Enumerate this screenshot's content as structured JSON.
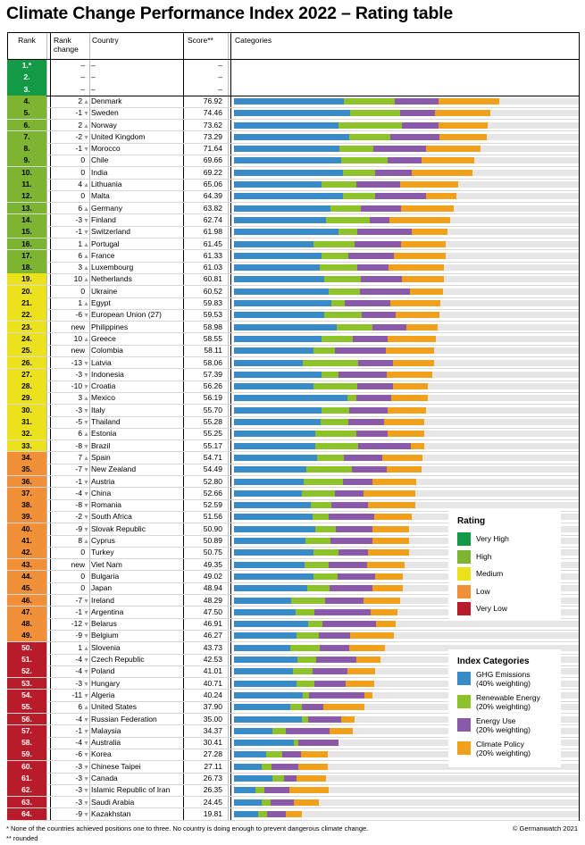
{
  "title": "Climate Change Performance Index 2022 – Rating table",
  "headers": {
    "rank": "Rank",
    "rank_change": "Rank change",
    "country": "Country",
    "score": "Score**",
    "categories": "Categories"
  },
  "colors": {
    "very_high": "#129a47",
    "high": "#7db431",
    "medium": "#ebe21d",
    "low": "#f0913a",
    "very_low": "#b81b29",
    "ghg": "#3a8ac8",
    "renewable": "#8dc22a",
    "energy": "#8a5aa8",
    "policy": "#f1a01c",
    "track": "#e6e6e6"
  },
  "legend_rating": {
    "title": "Rating",
    "items": [
      {
        "label": "Very High",
        "color": "#129a47"
      },
      {
        "label": "High",
        "color": "#7db431"
      },
      {
        "label": "Medium",
        "color": "#ebe21d"
      },
      {
        "label": "Low",
        "color": "#f0913a"
      },
      {
        "label": "Very Low",
        "color": "#b81b29"
      }
    ]
  },
  "legend_index": {
    "title": "Index Categories",
    "items": [
      {
        "label": "GHG Emissions",
        "sub": "(40% weighting)",
        "color": "#3a8ac8"
      },
      {
        "label": "Renewable Energy",
        "sub": "(20% weighting)",
        "color": "#8dc22a"
      },
      {
        "label": "Energy Use",
        "sub": "(20% weighting)",
        "color": "#8a5aa8"
      },
      {
        "label": "Climate Policy",
        "sub": "(20% weighting)",
        "color": "#f1a01c"
      }
    ]
  },
  "footer": {
    "note1": "* None of the countries achieved positions one to three. No country is doing enough to prevent dangerous climate change.",
    "note2": "** rounded",
    "credit": "© Germanwatch 2021"
  },
  "chart_data": {
    "type": "table",
    "category_scale_max": 100,
    "columns": [
      "rank",
      "rank_change",
      "country",
      "score",
      "ghg",
      "renewable",
      "energy",
      "policy",
      "rating"
    ],
    "rows": [
      {
        "rank": "1.*",
        "change": "–",
        "dir": "",
        "country": "–",
        "score": "–",
        "seg": null,
        "rating": "very_high"
      },
      {
        "rank": "2.",
        "change": "–",
        "dir": "",
        "country": "–",
        "score": "–",
        "seg": null,
        "rating": "very_high"
      },
      {
        "rank": "3.",
        "change": "–",
        "dir": "",
        "country": "–",
        "score": "–",
        "seg": null,
        "rating": "very_high"
      },
      {
        "rank": "4.",
        "change": "2",
        "dir": "up",
        "country": "Denmark",
        "score": "76.92",
        "seg": [
          31.9,
          14.7,
          12.6,
          17.7
        ],
        "rating": "high"
      },
      {
        "rank": "5.",
        "change": "-1",
        "dir": "down",
        "country": "Sweden",
        "score": "74.46",
        "seg": [
          33.6,
          14.5,
          10.3,
          15.9
        ],
        "rating": "high"
      },
      {
        "rank": "6.",
        "change": "2",
        "dir": "up",
        "country": "Norway",
        "score": "73.62",
        "seg": [
          30.2,
          18.4,
          10.6,
          14.4
        ],
        "rating": "high"
      },
      {
        "rank": "7.",
        "change": "-2",
        "dir": "down",
        "country": "United Kingdom",
        "score": "73.29",
        "seg": [
          33.4,
          11.9,
          14.4,
          13.6
        ],
        "rating": "high"
      },
      {
        "rank": "8.",
        "change": "-1",
        "dir": "down",
        "country": "Morocco",
        "score": "71.64",
        "seg": [
          30.6,
          9.8,
          15.3,
          15.9
        ],
        "rating": "high"
      },
      {
        "rank": "9.",
        "change": "0",
        "dir": "",
        "country": "Chile",
        "score": "69.66",
        "seg": [
          31.2,
          13.3,
          9.8,
          15.3
        ],
        "rating": "high"
      },
      {
        "rank": "10.",
        "change": "0",
        "dir": "",
        "country": "India",
        "score": "69.22",
        "seg": [
          31.5,
          9.5,
          10.6,
          17.6
        ],
        "rating": "high"
      },
      {
        "rank": "11.",
        "change": "4",
        "dir": "up",
        "country": "Lithuania",
        "score": "65.06",
        "seg": [
          25.4,
          10.0,
          12.7,
          16.9
        ],
        "rating": "high"
      },
      {
        "rank": "12.",
        "change": "0",
        "dir": "",
        "country": "Malta",
        "score": "64.39",
        "seg": [
          31.5,
          9.5,
          14.7,
          8.7
        ],
        "rating": "high"
      },
      {
        "rank": "13.",
        "change": "6",
        "dir": "up",
        "country": "Germany",
        "score": "63.82",
        "seg": [
          28.0,
          8.7,
          11.8,
          15.3
        ],
        "rating": "high"
      },
      {
        "rank": "14.",
        "change": "-3",
        "dir": "down",
        "country": "Finland",
        "score": "62.74",
        "seg": [
          26.6,
          12.7,
          5.8,
          17.6
        ],
        "rating": "high"
      },
      {
        "rank": "15.",
        "change": "-1",
        "dir": "down",
        "country": "Switzerland",
        "score": "61.98",
        "seg": [
          30.2,
          5.5,
          15.9,
          10.4
        ],
        "rating": "high"
      },
      {
        "rank": "16.",
        "change": "1",
        "dir": "up",
        "country": "Portugal",
        "score": "61.45",
        "seg": [
          23.1,
          11.8,
          13.5,
          13.0
        ],
        "rating": "high"
      },
      {
        "rank": "17.",
        "change": "6",
        "dir": "up",
        "country": "France",
        "score": "61.33",
        "seg": [
          25.4,
          7.8,
          13.3,
          14.8
        ],
        "rating": "high"
      },
      {
        "rank": "18.",
        "change": "3",
        "dir": "up",
        "country": "Luxembourg",
        "score": "61.03",
        "seg": [
          24.8,
          10.9,
          9.2,
          16.1
        ],
        "rating": "high"
      },
      {
        "rank": "19.",
        "change": "10",
        "dir": "up",
        "country": "Netherlands",
        "score": "60.81",
        "seg": [
          26.1,
          10.7,
          11.8,
          12.2
        ],
        "rating": "medium"
      },
      {
        "rank": "20.",
        "change": "0",
        "dir": "",
        "country": "Ukraine",
        "score": "60.52",
        "seg": [
          27.4,
          9.2,
          14.5,
          9.4
        ],
        "rating": "medium"
      },
      {
        "rank": "21.",
        "change": "1",
        "dir": "up",
        "country": "Egypt",
        "score": "59.83",
        "seg": [
          28.2,
          3.9,
          13.3,
          14.4
        ],
        "rating": "medium"
      },
      {
        "rank": "22.",
        "change": "-6",
        "dir": "down",
        "country": "European Union (27)",
        "score": "59.53",
        "seg": [
          26.1,
          10.9,
          10.0,
          12.5
        ],
        "rating": "medium"
      },
      {
        "rank": "23.",
        "change": "new",
        "dir": "",
        "country": "Philippines",
        "score": "58.98",
        "seg": [
          29.7,
          10.4,
          9.8,
          9.1
        ],
        "rating": "medium"
      },
      {
        "rank": "24.",
        "change": "10",
        "dir": "up",
        "country": "Greece",
        "score": "58.55",
        "seg": [
          25.4,
          9.1,
          10.0,
          14.0
        ],
        "rating": "medium"
      },
      {
        "rank": "25.",
        "change": "new",
        "dir": "",
        "country": "Colombia",
        "score": "58.11",
        "seg": [
          23.0,
          6.4,
          14.7,
          14.0
        ],
        "rating": "medium"
      },
      {
        "rank": "26.",
        "change": "-13",
        "dir": "down",
        "country": "Latvia",
        "score": "58.06",
        "seg": [
          19.9,
          16.1,
          10.0,
          12.1
        ],
        "rating": "medium"
      },
      {
        "rank": "27.",
        "change": "-3",
        "dir": "down",
        "country": "Indonesia",
        "score": "57.39",
        "seg": [
          25.4,
          4.8,
          14.1,
          13.2
        ],
        "rating": "medium"
      },
      {
        "rank": "28.",
        "change": "-10",
        "dir": "down",
        "country": "Croatia",
        "score": "56.26",
        "seg": [
          23.0,
          12.8,
          10.4,
          10.0
        ],
        "rating": "medium"
      },
      {
        "rank": "29.",
        "change": "3",
        "dir": "up",
        "country": "Mexico",
        "score": "56.19",
        "seg": [
          32.9,
          2.7,
          10.0,
          10.7
        ],
        "rating": "medium"
      },
      {
        "rank": "30.",
        "change": "-3",
        "dir": "down",
        "country": "Italy",
        "score": "55.70",
        "seg": [
          25.4,
          7.9,
          11.2,
          11.2
        ],
        "rating": "medium"
      },
      {
        "rank": "31.",
        "change": "-5",
        "dir": "down",
        "country": "Thailand",
        "score": "55.28",
        "seg": [
          25.2,
          7.9,
          10.5,
          11.7
        ],
        "rating": "medium"
      },
      {
        "rank": "32.",
        "change": "6",
        "dir": "up",
        "country": "Estonia",
        "score": "55.25",
        "seg": [
          23.5,
          11.9,
          9.2,
          10.7
        ],
        "rating": "medium"
      },
      {
        "rank": "33.",
        "change": "-8",
        "dir": "down",
        "country": "Brazil",
        "score": "55.17",
        "seg": [
          23.5,
          12.4,
          15.3,
          3.9
        ],
        "rating": "medium"
      },
      {
        "rank": "34.",
        "change": "7",
        "dir": "up",
        "country": "Spain",
        "score": "54.71",
        "seg": [
          24.1,
          7.8,
          11.2,
          11.6
        ],
        "rating": "low"
      },
      {
        "rank": "35.",
        "change": "-7",
        "dir": "down",
        "country": "New Zealand",
        "score": "54.49",
        "seg": [
          20.9,
          13.3,
          10.2,
          10.0
        ],
        "rating": "low"
      },
      {
        "rank": "36.",
        "change": "-1",
        "dir": "down",
        "country": "Austria",
        "score": "52.80",
        "seg": [
          20.3,
          11.2,
          8.7,
          12.7
        ],
        "rating": "low"
      },
      {
        "rank": "37.",
        "change": "-4",
        "dir": "down",
        "country": "China",
        "score": "52.66",
        "seg": [
          19.8,
          9.4,
          8.3,
          15.1
        ],
        "rating": "low"
      },
      {
        "rank": "38.",
        "change": "-8",
        "dir": "down",
        "country": "Romania",
        "score": "52.59",
        "seg": [
          22.3,
          6.0,
          10.6,
          13.7
        ],
        "rating": "low"
      },
      {
        "rank": "39.",
        "change": "-2",
        "dir": "down",
        "country": "South Africa",
        "score": "51.56",
        "seg": [
          22.9,
          4.6,
          13.1,
          10.9
        ],
        "rating": "low"
      },
      {
        "rank": "40.",
        "change": "-9",
        "dir": "down",
        "country": "Slovak Republic",
        "score": "50.90",
        "seg": [
          23.5,
          6.0,
          10.6,
          10.8
        ],
        "rating": "low"
      },
      {
        "rank": "41.",
        "change": "8",
        "dir": "up",
        "country": "Cyprus",
        "score": "50.89",
        "seg": [
          20.8,
          7.2,
          12.1,
          10.8
        ],
        "rating": "low"
      },
      {
        "rank": "42.",
        "change": "0",
        "dir": "",
        "country": "Turkey",
        "score": "50.75",
        "seg": [
          23.1,
          7.2,
          8.6,
          11.9
        ],
        "rating": "low"
      },
      {
        "rank": "43.",
        "change": "new",
        "dir": "",
        "country": "Viet Nam",
        "score": "49.35",
        "seg": [
          20.4,
          7.0,
          11.2,
          10.8
        ],
        "rating": "low"
      },
      {
        "rank": "44.",
        "change": "0",
        "dir": "",
        "country": "Bulgaria",
        "score": "49.02",
        "seg": [
          23.1,
          7.0,
          10.9,
          8.0
        ],
        "rating": "low"
      },
      {
        "rank": "45.",
        "change": "0",
        "dir": "",
        "country": "Japan",
        "score": "48.94",
        "seg": [
          21.2,
          6.6,
          12.4,
          8.8
        ],
        "rating": "low"
      },
      {
        "rank": "46.",
        "change": "-7",
        "dir": "down",
        "country": "Ireland",
        "score": "48.29",
        "seg": [
          16.7,
          9.8,
          11.0,
          10.8
        ],
        "rating": "low"
      },
      {
        "rank": "47.",
        "change": "-1",
        "dir": "down",
        "country": "Argentina",
        "score": "47.50",
        "seg": [
          18.0,
          5.3,
          16.3,
          7.9
        ],
        "rating": "low"
      },
      {
        "rank": "48.",
        "change": "-12",
        "dir": "down",
        "country": "Belarus",
        "score": "46.91",
        "seg": [
          21.4,
          4.3,
          15.4,
          5.8
        ],
        "rating": "low"
      },
      {
        "rank": "49.",
        "change": "-9",
        "dir": "down",
        "country": "Belgium",
        "score": "46.27",
        "seg": [
          18.1,
          6.4,
          9.3,
          12.5
        ],
        "rating": "low"
      },
      {
        "rank": "50.",
        "change": "1",
        "dir": "up",
        "country": "Slovenia",
        "score": "43.73",
        "seg": [
          16.4,
          8.4,
          8.6,
          10.3
        ],
        "rating": "very_low"
      },
      {
        "rank": "51.",
        "change": "-4",
        "dir": "down",
        "country": "Czech Republic",
        "score": "42.53",
        "seg": [
          18.3,
          5.6,
          11.6,
          7.0
        ],
        "rating": "very_low"
      },
      {
        "rank": "52.",
        "change": "-4",
        "dir": "down",
        "country": "Poland",
        "score": "41.01",
        "seg": [
          17.0,
          5.9,
          9.9,
          8.2
        ],
        "rating": "very_low"
      },
      {
        "rank": "53.",
        "change": "-3",
        "dir": "down",
        "country": "Hungary",
        "score": "40.71",
        "seg": [
          18.2,
          5.0,
          9.1,
          8.4
        ],
        "rating": "very_low"
      },
      {
        "rank": "54.",
        "change": "-11",
        "dir": "down",
        "country": "Algeria",
        "score": "40.24",
        "seg": [
          20.0,
          1.7,
          16.2,
          2.3
        ],
        "rating": "very_low"
      },
      {
        "rank": "55.",
        "change": "6",
        "dir": "up",
        "country": "United States",
        "score": "37.90",
        "seg": [
          16.2,
          3.5,
          6.1,
          12.1
        ],
        "rating": "very_low"
      },
      {
        "rank": "56.",
        "change": "-4",
        "dir": "down",
        "country": "Russian Federation",
        "score": "35.00",
        "seg": [
          19.6,
          1.9,
          9.6,
          3.9
        ],
        "rating": "very_low"
      },
      {
        "rank": "57.",
        "change": "-1",
        "dir": "down",
        "country": "Malaysia",
        "score": "34.37",
        "seg": [
          11.1,
          3.9,
          12.8,
          6.6
        ],
        "rating": "very_low"
      },
      {
        "rank": "58.",
        "change": "-4",
        "dir": "down",
        "country": "Australia",
        "score": "30.41",
        "seg": [
          17.3,
          1.4,
          11.7,
          0.0
        ],
        "rating": "very_low"
      },
      {
        "rank": "59.",
        "change": "-6",
        "dir": "down",
        "country": "Korea",
        "score": "27.28",
        "seg": [
          9.4,
          4.6,
          5.5,
          7.8
        ],
        "rating": "very_low"
      },
      {
        "rank": "60.",
        "change": "-3",
        "dir": "down",
        "country": "Chinese Taipei",
        "score": "27.11",
        "seg": [
          8.1,
          2.9,
          7.6,
          8.5
        ],
        "rating": "very_low"
      },
      {
        "rank": "61.",
        "change": "-3",
        "dir": "down",
        "country": "Canada",
        "score": "26.73",
        "seg": [
          11.2,
          3.4,
          3.5,
          8.6
        ],
        "rating": "very_low"
      },
      {
        "rank": "62.",
        "change": "-3",
        "dir": "down",
        "country": "Islamic Republic of Iran",
        "score": "26.35",
        "seg": [
          6.3,
          2.5,
          7.3,
          11.3
        ],
        "rating": "very_low"
      },
      {
        "rank": "63.",
        "change": "-3",
        "dir": "down",
        "country": "Saudi Arabia",
        "score": "24.45",
        "seg": [
          8.0,
          2.6,
          6.8,
          7.1
        ],
        "rating": "very_low"
      },
      {
        "rank": "64.",
        "change": "-9",
        "dir": "down",
        "country": "Kazakhstan",
        "score": "19.81",
        "seg": [
          6.9,
          2.6,
          5.6,
          4.7
        ],
        "rating": "very_low"
      }
    ]
  }
}
